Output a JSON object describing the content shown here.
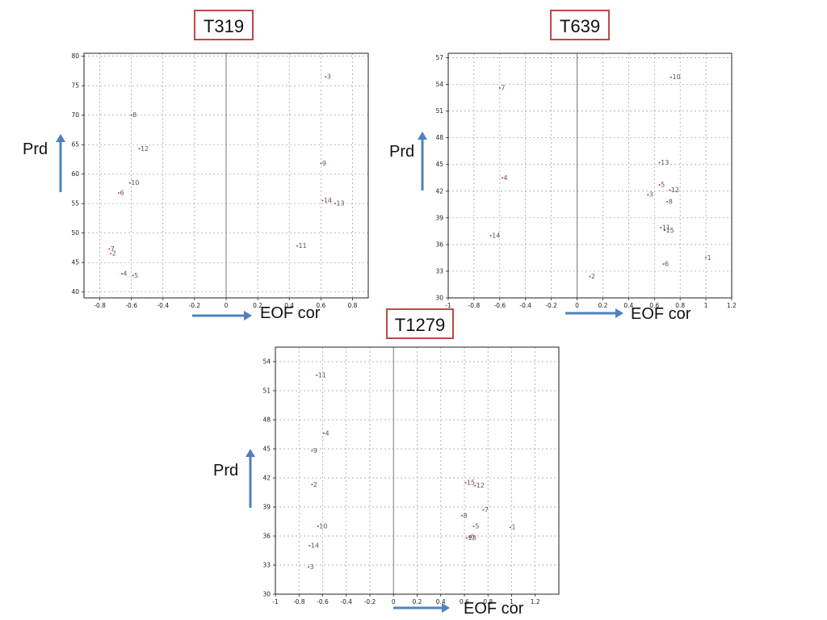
{
  "ui": {
    "prd_label": "Prd",
    "eof_label": "EOF cor",
    "arrow_color": "#4f81bd",
    "title_border_color": "#b94a48",
    "point_color": "#c0392b"
  },
  "chart_data": [
    {
      "type": "scatter",
      "title": "T319",
      "xlabel": "EOF cor",
      "ylabel": "Prd",
      "xlim": [
        -0.9,
        0.9
      ],
      "ylim": [
        39,
        80.5
      ],
      "xticks": [
        -0.8,
        -0.6,
        -0.4,
        -0.2,
        0,
        0.2,
        0.4,
        0.6,
        0.8
      ],
      "yticks": [
        40,
        45,
        50,
        55,
        60,
        65,
        70,
        75,
        80
      ],
      "grid": true,
      "points": [
        {
          "label": "3",
          "x": 0.63,
          "y": 76.5
        },
        {
          "label": "8",
          "x": -0.6,
          "y": 70
        },
        {
          "label": "12",
          "x": -0.55,
          "y": 64.3
        },
        {
          "label": "9",
          "x": 0.6,
          "y": 61.8
        },
        {
          "label": "10",
          "x": -0.61,
          "y": 58.5
        },
        {
          "label": "6",
          "x": -0.68,
          "y": 56.8
        },
        {
          "label": "14",
          "x": 0.61,
          "y": 55.5
        },
        {
          "label": "13",
          "x": 0.69,
          "y": 55
        },
        {
          "label": "11",
          "x": 0.45,
          "y": 47.8
        },
        {
          "label": "7",
          "x": -0.74,
          "y": 47.3
        },
        {
          "label": "2",
          "x": -0.73,
          "y": 46.5
        },
        {
          "label": "4",
          "x": -0.66,
          "y": 43.1
        },
        {
          "label": "5",
          "x": -0.59,
          "y": 42.8
        }
      ]
    },
    {
      "type": "scatter",
      "title": "T639",
      "xlabel": "EOF cor",
      "ylabel": "Prd",
      "xlim": [
        -1,
        1.2
      ],
      "ylim": [
        30,
        57.5
      ],
      "xticks": [
        -1,
        -0.8,
        -0.6,
        -0.4,
        -0.2,
        0,
        0.2,
        0.4,
        0.6,
        0.8,
        1,
        1.2
      ],
      "yticks": [
        30,
        33,
        36,
        39,
        42,
        45,
        48,
        51,
        54,
        57
      ],
      "grid": true,
      "points": [
        {
          "label": "10",
          "x": 0.73,
          "y": 54.8
        },
        {
          "label": "7",
          "x": -0.6,
          "y": 53.6
        },
        {
          "label": "13",
          "x": 0.64,
          "y": 45.2
        },
        {
          "label": "4",
          "x": -0.58,
          "y": 43.5
        },
        {
          "label": "5",
          "x": 0.64,
          "y": 42.7
        },
        {
          "label": "12",
          "x": 0.72,
          "y": 42.1
        },
        {
          "label": "3",
          "x": 0.55,
          "y": 41.6
        },
        {
          "label": "8",
          "x": 0.7,
          "y": 40.8
        },
        {
          "label": "11",
          "x": 0.65,
          "y": 37.9
        },
        {
          "label": "15",
          "x": 0.68,
          "y": 37.6
        },
        {
          "label": "14",
          "x": -0.67,
          "y": 37
        },
        {
          "label": "1",
          "x": 1.0,
          "y": 34.5
        },
        {
          "label": "6",
          "x": 0.67,
          "y": 33.8
        },
        {
          "label": "2",
          "x": 0.1,
          "y": 32.4
        }
      ]
    },
    {
      "type": "scatter",
      "title": "T1279",
      "xlabel": "EOF cor",
      "ylabel": "Prd",
      "xlim": [
        -1,
        1.4
      ],
      "ylim": [
        30,
        55.5
      ],
      "xticks": [
        -1,
        -0.8,
        -0.6,
        -0.4,
        -0.2,
        0,
        0.2,
        0.4,
        0.6,
        0.8,
        1,
        1.2
      ],
      "yticks": [
        30,
        33,
        36,
        39,
        42,
        45,
        48,
        51,
        54
      ],
      "grid": true,
      "points": [
        {
          "label": "11",
          "x": -0.65,
          "y": 52.6
        },
        {
          "label": "4",
          "x": -0.59,
          "y": 46.6
        },
        {
          "label": "9",
          "x": -0.69,
          "y": 44.8
        },
        {
          "label": "2",
          "x": -0.69,
          "y": 41.3
        },
        {
          "label": "15",
          "x": 0.61,
          "y": 41.5
        },
        {
          "label": "12",
          "x": 0.69,
          "y": 41.2
        },
        {
          "label": "7",
          "x": 0.76,
          "y": 38.7
        },
        {
          "label": "8",
          "x": 0.58,
          "y": 38.1
        },
        {
          "label": "10",
          "x": -0.64,
          "y": 37
        },
        {
          "label": "5",
          "x": 0.68,
          "y": 37
        },
        {
          "label": "1",
          "x": 0.99,
          "y": 36.9
        },
        {
          "label": "13",
          "x": 0.62,
          "y": 35.8
        },
        {
          "label": "6",
          "x": 0.64,
          "y": 35.9
        },
        {
          "label": "14",
          "x": -0.71,
          "y": 35
        },
        {
          "label": "3",
          "x": -0.72,
          "y": 32.8
        }
      ]
    }
  ]
}
